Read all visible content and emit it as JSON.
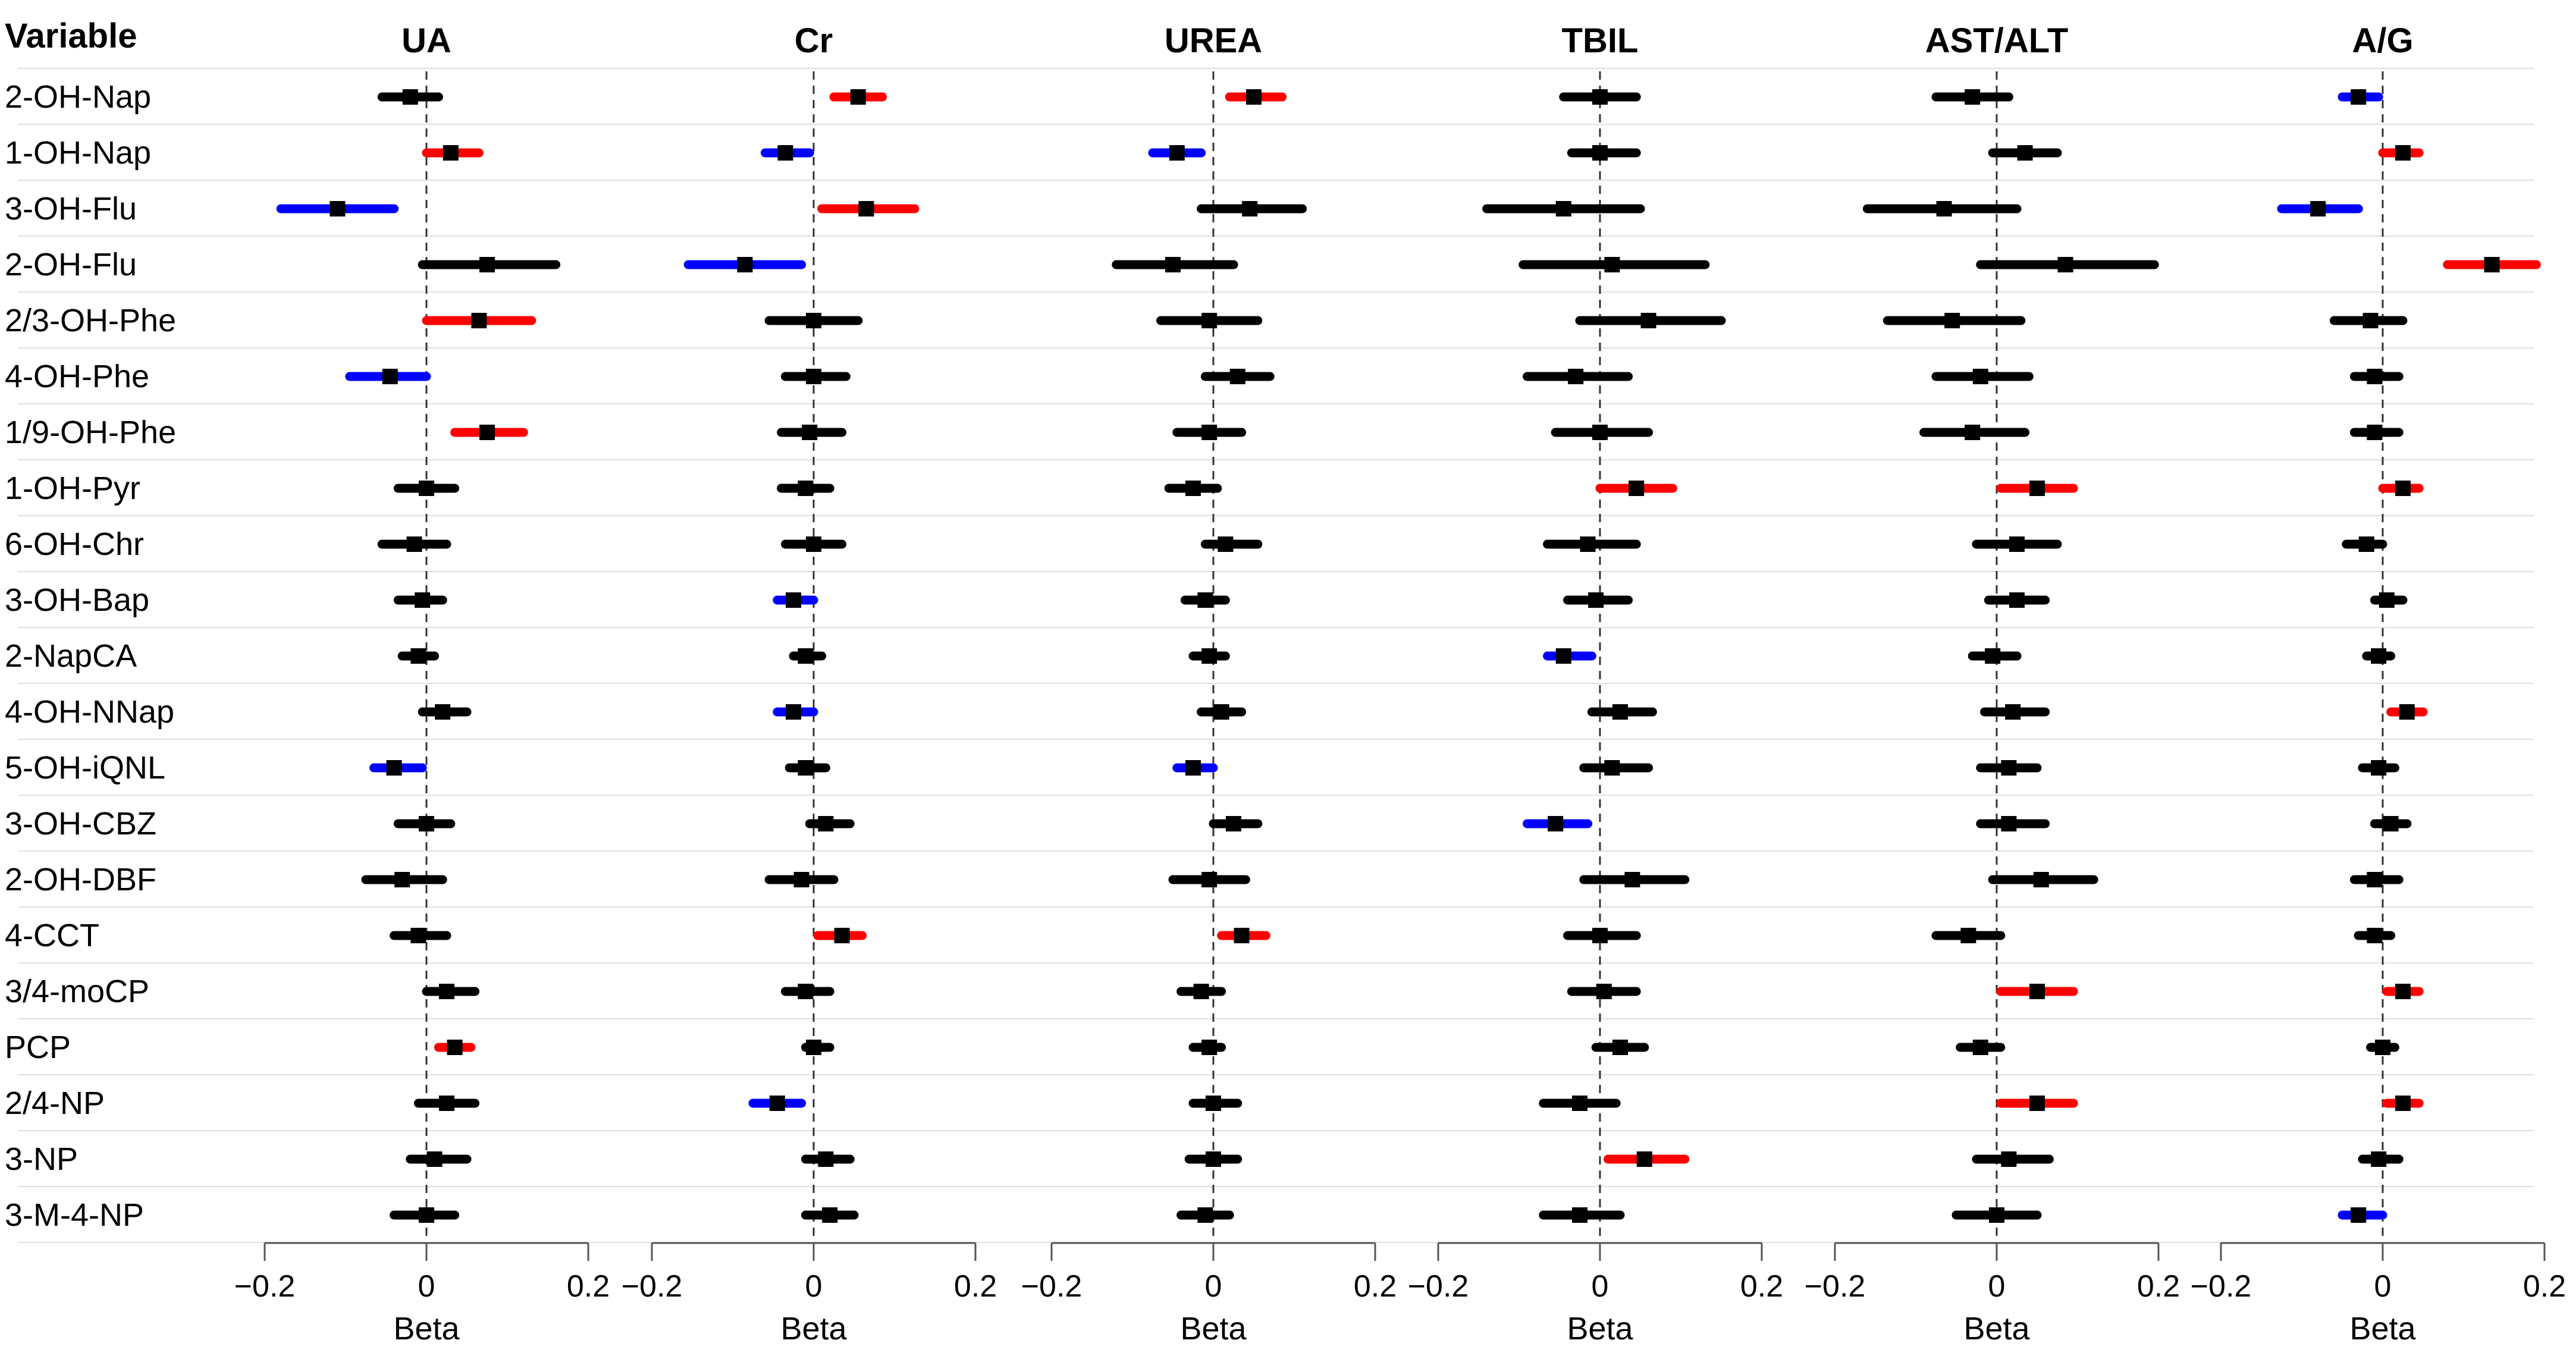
{
  "chart_data": {
    "type": "forest",
    "variable_header": "Variable",
    "variables": [
      "2-OH-Nap",
      "1-OH-Nap",
      "3-OH-Flu",
      "2-OH-Flu",
      "2/3-OH-Phe",
      "4-OH-Phe",
      "1/9-OH-Phe",
      "1-OH-Pyr",
      "6-OH-Chr",
      "3-OH-Bap",
      "2-NapCA",
      "4-OH-NNap",
      "5-OH-iQNL",
      "3-OH-CBZ",
      "2-OH-DBF",
      "4-CCT",
      "3/4-moCP",
      "PCP",
      "2/4-NP",
      "3-NP",
      "3-M-4-NP"
    ],
    "x_range": [
      -0.2,
      0.2
    ],
    "x_ticks": [
      "−0.2",
      "0",
      "0.2"
    ],
    "x_label": "Beta",
    "colors": {
      "positive": "#ff0000",
      "negative": "#0000ff",
      "ns": "#000000"
    },
    "panels": [
      {
        "title": "UA",
        "rows": [
          {
            "beta": -0.02,
            "lo": -0.055,
            "hi": 0.015,
            "sig": "ns"
          },
          {
            "beta": 0.03,
            "lo": 0.0,
            "hi": 0.065,
            "sig": "pos"
          },
          {
            "beta": -0.11,
            "lo": -0.18,
            "hi": -0.04,
            "sig": "neg"
          },
          {
            "beta": 0.075,
            "lo": -0.005,
            "hi": 0.16,
            "sig": "ns"
          },
          {
            "beta": 0.065,
            "lo": 0.0,
            "hi": 0.13,
            "sig": "pos"
          },
          {
            "beta": -0.045,
            "lo": -0.095,
            "hi": 0.0,
            "sig": "neg"
          },
          {
            "beta": 0.075,
            "lo": 0.035,
            "hi": 0.12,
            "sig": "pos"
          },
          {
            "beta": 0.0,
            "lo": -0.035,
            "hi": 0.035,
            "sig": "ns"
          },
          {
            "beta": -0.015,
            "lo": -0.055,
            "hi": 0.025,
            "sig": "ns"
          },
          {
            "beta": -0.005,
            "lo": -0.035,
            "hi": 0.02,
            "sig": "ns"
          },
          {
            "beta": -0.01,
            "lo": -0.03,
            "hi": 0.01,
            "sig": "ns"
          },
          {
            "beta": 0.02,
            "lo": -0.005,
            "hi": 0.05,
            "sig": "ns"
          },
          {
            "beta": -0.04,
            "lo": -0.065,
            "hi": -0.005,
            "sig": "neg"
          },
          {
            "beta": 0.0,
            "lo": -0.035,
            "hi": 0.03,
            "sig": "ns"
          },
          {
            "beta": -0.03,
            "lo": -0.075,
            "hi": 0.02,
            "sig": "ns"
          },
          {
            "beta": -0.01,
            "lo": -0.04,
            "hi": 0.025,
            "sig": "ns"
          },
          {
            "beta": 0.025,
            "lo": 0.0,
            "hi": 0.06,
            "sig": "ns"
          },
          {
            "beta": 0.035,
            "lo": 0.015,
            "hi": 0.055,
            "sig": "pos"
          },
          {
            "beta": 0.025,
            "lo": -0.01,
            "hi": 0.06,
            "sig": "ns"
          },
          {
            "beta": 0.01,
            "lo": -0.02,
            "hi": 0.05,
            "sig": "ns"
          },
          {
            "beta": 0.0,
            "lo": -0.04,
            "hi": 0.035,
            "sig": "ns"
          }
        ]
      },
      {
        "title": "Cr",
        "rows": [
          {
            "beta": 0.055,
            "lo": 0.025,
            "hi": 0.085,
            "sig": "pos"
          },
          {
            "beta": -0.035,
            "lo": -0.06,
            "hi": -0.005,
            "sig": "neg"
          },
          {
            "beta": 0.065,
            "lo": 0.01,
            "hi": 0.125,
            "sig": "pos"
          },
          {
            "beta": -0.085,
            "lo": -0.155,
            "hi": -0.015,
            "sig": "neg"
          },
          {
            "beta": 0.0,
            "lo": -0.055,
            "hi": 0.055,
            "sig": "ns"
          },
          {
            "beta": 0.0,
            "lo": -0.035,
            "hi": 0.04,
            "sig": "ns"
          },
          {
            "beta": -0.005,
            "lo": -0.04,
            "hi": 0.035,
            "sig": "ns"
          },
          {
            "beta": -0.01,
            "lo": -0.04,
            "hi": 0.02,
            "sig": "ns"
          },
          {
            "beta": 0.0,
            "lo": -0.035,
            "hi": 0.035,
            "sig": "ns"
          },
          {
            "beta": -0.025,
            "lo": -0.045,
            "hi": 0.0,
            "sig": "neg"
          },
          {
            "beta": -0.01,
            "lo": -0.025,
            "hi": 0.01,
            "sig": "ns"
          },
          {
            "beta": -0.025,
            "lo": -0.045,
            "hi": 0.0,
            "sig": "neg"
          },
          {
            "beta": -0.01,
            "lo": -0.03,
            "hi": 0.015,
            "sig": "ns"
          },
          {
            "beta": 0.015,
            "lo": -0.005,
            "hi": 0.045,
            "sig": "ns"
          },
          {
            "beta": -0.015,
            "lo": -0.055,
            "hi": 0.025,
            "sig": "ns"
          },
          {
            "beta": 0.035,
            "lo": 0.005,
            "hi": 0.06,
            "sig": "pos"
          },
          {
            "beta": -0.01,
            "lo": -0.035,
            "hi": 0.02,
            "sig": "ns"
          },
          {
            "beta": 0.0,
            "lo": -0.01,
            "hi": 0.02,
            "sig": "ns"
          },
          {
            "beta": -0.045,
            "lo": -0.075,
            "hi": -0.015,
            "sig": "neg"
          },
          {
            "beta": 0.015,
            "lo": -0.01,
            "hi": 0.045,
            "sig": "ns"
          },
          {
            "beta": 0.02,
            "lo": -0.01,
            "hi": 0.05,
            "sig": "ns"
          }
        ]
      },
      {
        "title": "UREA",
        "rows": [
          {
            "beta": 0.05,
            "lo": 0.02,
            "hi": 0.085,
            "sig": "pos"
          },
          {
            "beta": -0.045,
            "lo": -0.075,
            "hi": -0.015,
            "sig": "neg"
          },
          {
            "beta": 0.045,
            "lo": -0.015,
            "hi": 0.11,
            "sig": "ns"
          },
          {
            "beta": -0.05,
            "lo": -0.12,
            "hi": 0.025,
            "sig": "ns"
          },
          {
            "beta": -0.005,
            "lo": -0.065,
            "hi": 0.055,
            "sig": "ns"
          },
          {
            "beta": 0.03,
            "lo": -0.01,
            "hi": 0.07,
            "sig": "ns"
          },
          {
            "beta": -0.005,
            "lo": -0.045,
            "hi": 0.035,
            "sig": "ns"
          },
          {
            "beta": -0.025,
            "lo": -0.055,
            "hi": 0.005,
            "sig": "ns"
          },
          {
            "beta": 0.015,
            "lo": -0.01,
            "hi": 0.055,
            "sig": "ns"
          },
          {
            "beta": -0.01,
            "lo": -0.035,
            "hi": 0.015,
            "sig": "ns"
          },
          {
            "beta": -0.005,
            "lo": -0.025,
            "hi": 0.015,
            "sig": "ns"
          },
          {
            "beta": 0.01,
            "lo": -0.015,
            "hi": 0.035,
            "sig": "ns"
          },
          {
            "beta": -0.025,
            "lo": -0.045,
            "hi": 0.0,
            "sig": "neg"
          },
          {
            "beta": 0.025,
            "lo": 0.0,
            "hi": 0.055,
            "sig": "ns"
          },
          {
            "beta": -0.005,
            "lo": -0.05,
            "hi": 0.04,
            "sig": "ns"
          },
          {
            "beta": 0.035,
            "lo": 0.01,
            "hi": 0.065,
            "sig": "pos"
          },
          {
            "beta": -0.015,
            "lo": -0.04,
            "hi": 0.01,
            "sig": "ns"
          },
          {
            "beta": -0.005,
            "lo": -0.025,
            "hi": 0.01,
            "sig": "ns"
          },
          {
            "beta": 0.0,
            "lo": -0.025,
            "hi": 0.03,
            "sig": "ns"
          },
          {
            "beta": 0.0,
            "lo": -0.03,
            "hi": 0.03,
            "sig": "ns"
          },
          {
            "beta": -0.01,
            "lo": -0.04,
            "hi": 0.02,
            "sig": "ns"
          }
        ]
      },
      {
        "title": "TBIL",
        "rows": [
          {
            "beta": 0.0,
            "lo": -0.045,
            "hi": 0.045,
            "sig": "ns"
          },
          {
            "beta": 0.0,
            "lo": -0.035,
            "hi": 0.045,
            "sig": "ns"
          },
          {
            "beta": -0.045,
            "lo": -0.14,
            "hi": 0.05,
            "sig": "ns"
          },
          {
            "beta": 0.015,
            "lo": -0.095,
            "hi": 0.13,
            "sig": "ns"
          },
          {
            "beta": 0.06,
            "lo": -0.025,
            "hi": 0.15,
            "sig": "ns"
          },
          {
            "beta": -0.03,
            "lo": -0.09,
            "hi": 0.035,
            "sig": "ns"
          },
          {
            "beta": 0.0,
            "lo": -0.055,
            "hi": 0.06,
            "sig": "ns"
          },
          {
            "beta": 0.045,
            "lo": 0.0,
            "hi": 0.09,
            "sig": "pos"
          },
          {
            "beta": -0.015,
            "lo": -0.065,
            "hi": 0.045,
            "sig": "ns"
          },
          {
            "beta": -0.005,
            "lo": -0.04,
            "hi": 0.035,
            "sig": "ns"
          },
          {
            "beta": -0.045,
            "lo": -0.065,
            "hi": -0.01,
            "sig": "neg"
          },
          {
            "beta": 0.025,
            "lo": -0.01,
            "hi": 0.065,
            "sig": "ns"
          },
          {
            "beta": 0.015,
            "lo": -0.02,
            "hi": 0.06,
            "sig": "ns"
          },
          {
            "beta": -0.055,
            "lo": -0.09,
            "hi": -0.015,
            "sig": "neg"
          },
          {
            "beta": 0.04,
            "lo": -0.02,
            "hi": 0.105,
            "sig": "ns"
          },
          {
            "beta": 0.0,
            "lo": -0.04,
            "hi": 0.045,
            "sig": "ns"
          },
          {
            "beta": 0.005,
            "lo": -0.035,
            "hi": 0.045,
            "sig": "ns"
          },
          {
            "beta": 0.025,
            "lo": -0.005,
            "hi": 0.055,
            "sig": "ns"
          },
          {
            "beta": -0.025,
            "lo": -0.07,
            "hi": 0.02,
            "sig": "ns"
          },
          {
            "beta": 0.055,
            "lo": 0.01,
            "hi": 0.105,
            "sig": "pos"
          },
          {
            "beta": -0.025,
            "lo": -0.07,
            "hi": 0.025,
            "sig": "ns"
          }
        ]
      },
      {
        "title": "AST/ALT",
        "rows": [
          {
            "beta": -0.03,
            "lo": -0.075,
            "hi": 0.015,
            "sig": "ns"
          },
          {
            "beta": 0.035,
            "lo": -0.005,
            "hi": 0.075,
            "sig": "ns"
          },
          {
            "beta": -0.065,
            "lo": -0.16,
            "hi": 0.025,
            "sig": "ns"
          },
          {
            "beta": 0.085,
            "lo": -0.02,
            "hi": 0.195,
            "sig": "ns"
          },
          {
            "beta": -0.055,
            "lo": -0.135,
            "hi": 0.03,
            "sig": "ns"
          },
          {
            "beta": -0.02,
            "lo": -0.075,
            "hi": 0.04,
            "sig": "ns"
          },
          {
            "beta": -0.03,
            "lo": -0.09,
            "hi": 0.035,
            "sig": "ns"
          },
          {
            "beta": 0.05,
            "lo": 0.005,
            "hi": 0.095,
            "sig": "pos"
          },
          {
            "beta": 0.025,
            "lo": -0.025,
            "hi": 0.075,
            "sig": "ns"
          },
          {
            "beta": 0.025,
            "lo": -0.01,
            "hi": 0.06,
            "sig": "ns"
          },
          {
            "beta": -0.005,
            "lo": -0.03,
            "hi": 0.025,
            "sig": "ns"
          },
          {
            "beta": 0.02,
            "lo": -0.015,
            "hi": 0.06,
            "sig": "ns"
          },
          {
            "beta": 0.015,
            "lo": -0.02,
            "hi": 0.05,
            "sig": "ns"
          },
          {
            "beta": 0.015,
            "lo": -0.02,
            "hi": 0.06,
            "sig": "ns"
          },
          {
            "beta": 0.055,
            "lo": -0.005,
            "hi": 0.12,
            "sig": "ns"
          },
          {
            "beta": -0.035,
            "lo": -0.075,
            "hi": 0.005,
            "sig": "ns"
          },
          {
            "beta": 0.05,
            "lo": 0.005,
            "hi": 0.095,
            "sig": "pos"
          },
          {
            "beta": -0.02,
            "lo": -0.045,
            "hi": 0.005,
            "sig": "ns"
          },
          {
            "beta": 0.05,
            "lo": 0.005,
            "hi": 0.095,
            "sig": "pos"
          },
          {
            "beta": 0.015,
            "lo": -0.025,
            "hi": 0.065,
            "sig": "ns"
          },
          {
            "beta": 0.0,
            "lo": -0.05,
            "hi": 0.05,
            "sig": "ns"
          }
        ]
      },
      {
        "title": "A/G",
        "rows": [
          {
            "beta": -0.03,
            "lo": -0.05,
            "hi": -0.005,
            "sig": "neg"
          },
          {
            "beta": 0.025,
            "lo": 0.0,
            "hi": 0.045,
            "sig": "pos"
          },
          {
            "beta": -0.08,
            "lo": -0.125,
            "hi": -0.03,
            "sig": "neg"
          },
          {
            "beta": 0.135,
            "lo": 0.08,
            "hi": 0.19,
            "sig": "pos"
          },
          {
            "beta": -0.015,
            "lo": -0.06,
            "hi": 0.025,
            "sig": "ns"
          },
          {
            "beta": -0.01,
            "lo": -0.035,
            "hi": 0.02,
            "sig": "ns"
          },
          {
            "beta": -0.01,
            "lo": -0.035,
            "hi": 0.02,
            "sig": "ns"
          },
          {
            "beta": 0.025,
            "lo": 0.0,
            "hi": 0.045,
            "sig": "pos"
          },
          {
            "beta": -0.02,
            "lo": -0.045,
            "hi": 0.0,
            "sig": "ns"
          },
          {
            "beta": 0.005,
            "lo": -0.01,
            "hi": 0.025,
            "sig": "ns"
          },
          {
            "beta": -0.005,
            "lo": -0.02,
            "hi": 0.01,
            "sig": "ns"
          },
          {
            "beta": 0.03,
            "lo": 0.01,
            "hi": 0.05,
            "sig": "pos"
          },
          {
            "beta": -0.005,
            "lo": -0.025,
            "hi": 0.015,
            "sig": "ns"
          },
          {
            "beta": 0.01,
            "lo": -0.01,
            "hi": 0.03,
            "sig": "ns"
          },
          {
            "beta": -0.01,
            "lo": -0.035,
            "hi": 0.02,
            "sig": "ns"
          },
          {
            "beta": -0.01,
            "lo": -0.03,
            "hi": 0.01,
            "sig": "ns"
          },
          {
            "beta": 0.025,
            "lo": 0.005,
            "hi": 0.045,
            "sig": "pos"
          },
          {
            "beta": 0.0,
            "lo": -0.015,
            "hi": 0.015,
            "sig": "ns"
          },
          {
            "beta": 0.025,
            "lo": 0.005,
            "hi": 0.045,
            "sig": "pos"
          },
          {
            "beta": -0.005,
            "lo": -0.025,
            "hi": 0.02,
            "sig": "ns"
          },
          {
            "beta": -0.03,
            "lo": -0.05,
            "hi": 0.0,
            "sig": "neg"
          }
        ]
      }
    ]
  }
}
